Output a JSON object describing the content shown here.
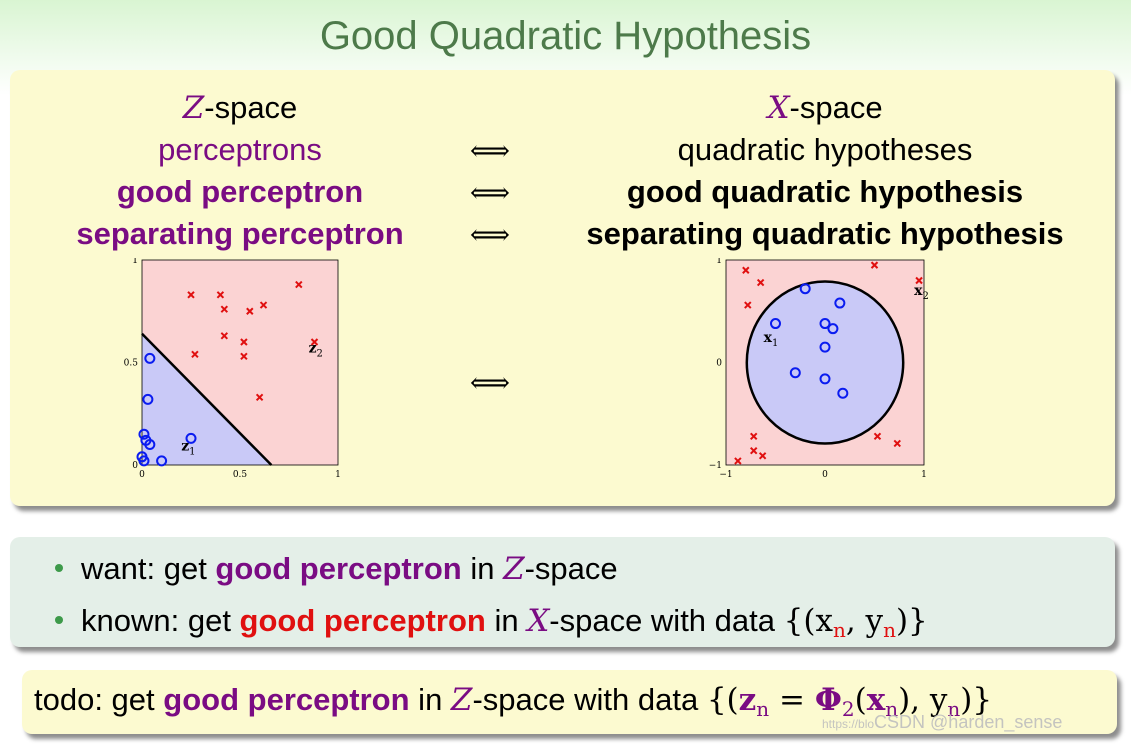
{
  "title": "Good Quadratic Hypothesis",
  "table": {
    "left_header_symbol": "Z",
    "left_header_text": "-space",
    "right_header_symbol": "X",
    "right_header_text": "-space",
    "rows": [
      {
        "left": "perceptrons",
        "arrow": "⟺",
        "right": "quadratic hypotheses"
      },
      {
        "left": "good perceptron",
        "arrow": "⟺",
        "right": "good quadratic hypothesis"
      },
      {
        "left": "separating perceptron",
        "arrow": "⟺",
        "right": "separating quadratic hypothesis"
      }
    ],
    "plot_arrow": "⟺"
  },
  "chart_data": [
    {
      "type": "scatter",
      "space": "Z",
      "xlim": [
        0,
        1
      ],
      "ylim": [
        0,
        1
      ],
      "x_ticks": [
        "0",
        "0.5",
        "1"
      ],
      "y_ticks": [
        "0",
        "0.5",
        "1"
      ],
      "boundary": {
        "type": "line",
        "from": [
          0,
          0.64
        ],
        "to": [
          0.66,
          0
        ]
      },
      "region_colors": {
        "positive": "#c9c9f7",
        "negative": "#fbd3d3"
      },
      "circles": [
        [
          0.04,
          0.52
        ],
        [
          0.03,
          0.32
        ],
        [
          0.01,
          0.15
        ],
        [
          0.02,
          0.12
        ],
        [
          0.04,
          0.1
        ],
        [
          0.0,
          0.04
        ],
        [
          0.1,
          0.02
        ],
        [
          0.25,
          0.13
        ],
        [
          0.01,
          0.02
        ]
      ],
      "crosses": [
        [
          0.25,
          0.83
        ],
        [
          0.4,
          0.83
        ],
        [
          0.42,
          0.76
        ],
        [
          0.62,
          0.78
        ],
        [
          0.55,
          0.75
        ],
        [
          0.8,
          0.88
        ],
        [
          0.42,
          0.63
        ],
        [
          0.52,
          0.6
        ],
        [
          0.27,
          0.54
        ],
        [
          0.52,
          0.53
        ],
        [
          0.88,
          0.6
        ],
        [
          0.6,
          0.33
        ]
      ],
      "point_labels": [
        {
          "text": "z",
          "sub": "1",
          "at": [
            0.2,
            0.07
          ]
        },
        {
          "text": "z",
          "sub": "2",
          "at": [
            0.85,
            0.55
          ]
        }
      ]
    },
    {
      "type": "scatter",
      "space": "X",
      "xlim": [
        -1,
        1
      ],
      "ylim": [
        -1,
        1
      ],
      "x_ticks": [
        "−1",
        "0",
        "1"
      ],
      "y_ticks": [
        "−1",
        "0",
        "1"
      ],
      "boundary": {
        "type": "circle",
        "center": [
          0,
          0
        ],
        "radius": 0.79
      },
      "region_colors": {
        "positive": "#c9c9f7",
        "negative": "#fbd3d3"
      },
      "circles": [
        [
          -0.2,
          0.72
        ],
        [
          0.15,
          0.58
        ],
        [
          -0.5,
          0.38
        ],
        [
          0.0,
          0.38
        ],
        [
          0.08,
          0.33
        ],
        [
          0.0,
          0.15
        ],
        [
          -0.3,
          -0.1
        ],
        [
          0.0,
          -0.16
        ],
        [
          0.18,
          -0.3
        ]
      ],
      "crosses": [
        [
          -0.8,
          0.9
        ],
        [
          -0.65,
          0.78
        ],
        [
          -0.78,
          0.56
        ],
        [
          0.5,
          0.95
        ],
        [
          0.95,
          0.8
        ],
        [
          -0.72,
          -0.72
        ],
        [
          -0.72,
          -0.86
        ],
        [
          -0.88,
          -0.96
        ],
        [
          -0.63,
          -0.91
        ],
        [
          0.53,
          -0.72
        ],
        [
          0.73,
          -0.79
        ]
      ],
      "point_labels": [
        {
          "text": "x",
          "sub": "1",
          "at": [
            -0.62,
            0.2
          ]
        },
        {
          "text": "x",
          "sub": "2",
          "at": [
            0.9,
            0.66
          ]
        }
      ]
    }
  ],
  "bullets": [
    {
      "pre": "want: get ",
      "emph": "good perceptron",
      "mid": " in ",
      "symbol": "Z",
      "post": "-space",
      "emph_color": "#7a0c83"
    },
    {
      "pre": "known: get ",
      "emph": "good perceptron",
      "mid": " in ",
      "symbol": "X",
      "post": "-space with data ",
      "math": "{(x",
      "math_sub": "n",
      "math_mid": ", y",
      "math_sub2": "n",
      "math_end": ")}",
      "emph_color": "#e01010"
    }
  ],
  "todo": {
    "pre": "todo: get ",
    "emph": "good perceptron",
    "mid": " in ",
    "symbol": "Z",
    "post": "-space with data ",
    "math_a": "{(",
    "z": "z",
    "z_sub": "n",
    "eq": " = ",
    "phi": "Φ",
    "phi_sub": "2",
    "open": "(",
    "x": "x",
    "x_sub": "n",
    "close": "), y",
    "y_sub": "n",
    "end": ")}"
  },
  "watermark": {
    "small": "https://blo",
    "main": "CSDN @harden_sense"
  }
}
